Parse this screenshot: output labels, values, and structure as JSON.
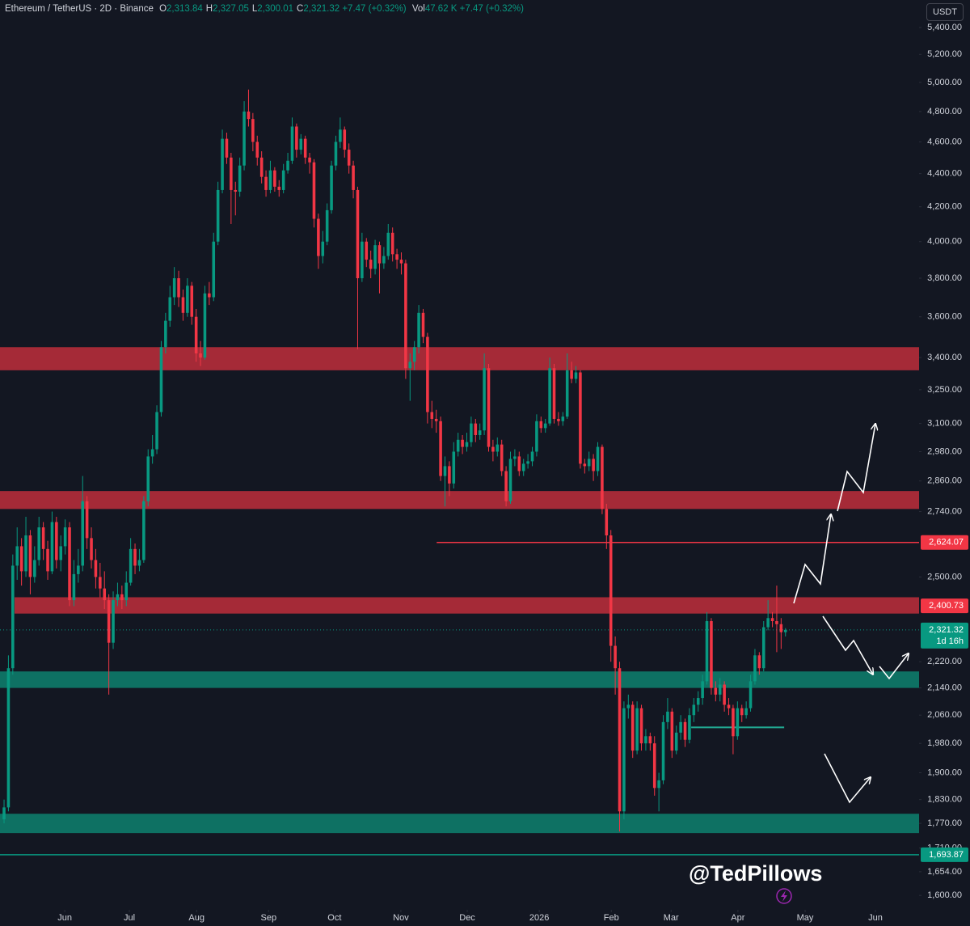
{
  "chart_data": {
    "type": "candlestick",
    "header": {
      "symbol": "Ethereum / TetherUS · 2D · Binance",
      "fields": [
        {
          "label": "O",
          "value": "2,313.84"
        },
        {
          "label": "H",
          "value": "2,327.05"
        },
        {
          "label": "L",
          "value": "2,300.01"
        },
        {
          "label": "C",
          "value": "2,321.32"
        }
      ],
      "change": "+7.47 (+0.32%)",
      "volume_label": "Vol",
      "volume": "47.62 K",
      "volume_change": "+7.47 (+0.32%)"
    },
    "currency": "USDT",
    "watermark": "@TedPillows",
    "up_color": "#089981",
    "down_color": "#f23645",
    "log_scale": true,
    "xlim": [
      -0.93,
      209.6
    ],
    "xticks": [
      {
        "value": 13.9,
        "label": "Jun"
      },
      {
        "value": 28.7,
        "label": "Jul"
      },
      {
        "value": 44.1,
        "label": "Aug"
      },
      {
        "value": 60.6,
        "label": "Sep"
      },
      {
        "value": 75.7,
        "label": "Oct"
      },
      {
        "value": 90.9,
        "label": "Nov"
      },
      {
        "value": 106.1,
        "label": "Dec"
      },
      {
        "value": 122.6,
        "label": "2026"
      },
      {
        "value": 139.1,
        "label": "Feb"
      },
      {
        "value": 152.8,
        "label": "Mar"
      },
      {
        "value": 168.1,
        "label": "Apr"
      },
      {
        "value": 183.5,
        "label": "May"
      },
      {
        "value": 199.6,
        "label": "Jun"
      }
    ],
    "ylim": [
      1568,
      5612
    ],
    "yticks": [
      {
        "value": 5400,
        "label": "5,400.00"
      },
      {
        "value": 5200,
        "label": "5,200.00"
      },
      {
        "value": 5000,
        "label": "5,000.00"
      },
      {
        "value": 4800,
        "label": "4,800.00"
      },
      {
        "value": 4600,
        "label": "4,600.00"
      },
      {
        "value": 4400,
        "label": "4,400.00"
      },
      {
        "value": 4200,
        "label": "4,200.00"
      },
      {
        "value": 4000,
        "label": "4,000.00"
      },
      {
        "value": 3800,
        "label": "3,800.00"
      },
      {
        "value": 3600,
        "label": "3,600.00"
      },
      {
        "value": 3400,
        "label": "3,400.00"
      },
      {
        "value": 3250,
        "label": "3,250.00"
      },
      {
        "value": 3100,
        "label": "3,100.00"
      },
      {
        "value": 2980,
        "label": "2,980.00"
      },
      {
        "value": 2860,
        "label": "2,860.00"
      },
      {
        "value": 2740,
        "label": "2,740.00"
      },
      {
        "value": 2500,
        "label": "2,500.00"
      },
      {
        "value": 2220,
        "label": "2,220.00"
      },
      {
        "value": 2140,
        "label": "2,140.00"
      },
      {
        "value": 2060,
        "label": "2,060.00"
      },
      {
        "value": 1980,
        "label": "1,980.00"
      },
      {
        "value": 1900,
        "label": "1,900.00"
      },
      {
        "value": 1830,
        "label": "1,830.00"
      },
      {
        "value": 1770,
        "label": "1,770.00"
      },
      {
        "value": 1710,
        "label": "1,710.00"
      },
      {
        "value": 1654,
        "label": "1,654.00"
      },
      {
        "value": 1600,
        "label": "1,600.00"
      }
    ],
    "zones": [
      {
        "low": 3340,
        "high": 3450,
        "color": "#b22d3a",
        "from": -0.93
      },
      {
        "low": 2750,
        "high": 2820,
        "color": "#b22d3a",
        "from": -0.93
      },
      {
        "low": 2375,
        "high": 2430,
        "color": "#b22d3a",
        "from": 2.4
      },
      {
        "low": 2140,
        "high": 2190,
        "color": "#0e7a69",
        "from": -0.93
      },
      {
        "low": 1746,
        "high": 1794,
        "color": "#0e7a69",
        "from": -0.93
      }
    ],
    "lines": [
      {
        "value": 2025,
        "color": "#22ab94",
        "from": 157.4,
        "to": 178.7
      }
    ],
    "price_lines": [
      {
        "value": 2624.07,
        "label": "2,624.07",
        "color": "#f23645",
        "line": "solid",
        "from": 99.1
      },
      {
        "value": 2400.73,
        "label": "2,400.73",
        "color": "#f23645"
      },
      {
        "value": 2321.32,
        "label": "2,321.32",
        "color": "#089981",
        "countdown": "1d 16h",
        "line": "dotted",
        "from": -0.93
      },
      {
        "value": 1693.87,
        "label": "1,693.87",
        "color": "#089981",
        "line": "solid",
        "from": -0.93
      }
    ],
    "ohlc": [
      [
        1780,
        1830,
        1770,
        1810
      ],
      [
        1810,
        2240,
        1800,
        2200
      ],
      [
        2200,
        2580,
        2180,
        2540
      ],
      [
        2540,
        2680,
        2490,
        2610
      ],
      [
        2610,
        2640,
        2470,
        2520
      ],
      [
        2520,
        2720,
        2500,
        2650
      ],
      [
        2650,
        2670,
        2440,
        2500
      ],
      [
        2500,
        2610,
        2480,
        2560
      ],
      [
        2560,
        2720,
        2540,
        2680
      ],
      [
        2680,
        2700,
        2560,
        2600
      ],
      [
        2600,
        2630,
        2490,
        2520
      ],
      [
        2520,
        2740,
        2510,
        2700
      ],
      [
        2700,
        2720,
        2530,
        2560
      ],
      [
        2560,
        2650,
        2520,
        2610
      ],
      [
        2610,
        2710,
        2580,
        2680
      ],
      [
        2680,
        2700,
        2400,
        2420
      ],
      [
        2420,
        2560,
        2400,
        2510
      ],
      [
        2510,
        2600,
        2480,
        2540
      ],
      [
        2540,
        2880,
        2520,
        2780
      ],
      [
        2780,
        2800,
        2600,
        2640
      ],
      [
        2640,
        2680,
        2530,
        2560
      ],
      [
        2560,
        2600,
        2460,
        2500
      ],
      [
        2500,
        2550,
        2430,
        2460
      ],
      [
        2460,
        2520,
        2390,
        2420
      ],
      [
        2420,
        2440,
        2120,
        2280
      ],
      [
        2280,
        2450,
        2260,
        2420
      ],
      [
        2420,
        2480,
        2400,
        2440
      ],
      [
        2440,
        2470,
        2390,
        2420
      ],
      [
        2420,
        2520,
        2400,
        2480
      ],
      [
        2480,
        2640,
        2470,
        2600
      ],
      [
        2600,
        2620,
        2510,
        2540
      ],
      [
        2540,
        2600,
        2520,
        2560
      ],
      [
        2560,
        2800,
        2550,
        2780
      ],
      [
        2780,
        2990,
        2760,
        2960
      ],
      [
        2960,
        3050,
        2930,
        2990
      ],
      [
        2990,
        3180,
        2970,
        3150
      ],
      [
        3150,
        3480,
        3130,
        3450
      ],
      [
        3450,
        3620,
        3420,
        3580
      ],
      [
        3580,
        3760,
        3550,
        3700
      ],
      [
        3700,
        3860,
        3660,
        3800
      ],
      [
        3800,
        3840,
        3650,
        3700
      ],
      [
        3700,
        3740,
        3580,
        3620
      ],
      [
        3620,
        3800,
        3600,
        3760
      ],
      [
        3760,
        3780,
        3560,
        3600
      ],
      [
        3600,
        3640,
        3380,
        3420
      ],
      [
        3420,
        3480,
        3360,
        3400
      ],
      [
        3400,
        3760,
        3390,
        3720
      ],
      [
        3720,
        3780,
        3660,
        3700
      ],
      [
        3700,
        4050,
        3680,
        4000
      ],
      [
        4000,
        4350,
        3980,
        4300
      ],
      [
        4300,
        4680,
        4280,
        4620
      ],
      [
        4620,
        4660,
        4460,
        4500
      ],
      [
        4500,
        4530,
        4100,
        4300
      ],
      [
        4300,
        4350,
        4150,
        4290
      ],
      [
        4290,
        4500,
        4260,
        4450
      ],
      [
        4450,
        4870,
        4420,
        4800
      ],
      [
        4800,
        4950,
        4700,
        4750
      ],
      [
        4750,
        4790,
        4540,
        4600
      ],
      [
        4600,
        4640,
        4450,
        4500
      ],
      [
        4500,
        4540,
        4340,
        4380
      ],
      [
        4380,
        4420,
        4260,
        4300
      ],
      [
        4300,
        4480,
        4280,
        4420
      ],
      [
        4420,
        4440,
        4290,
        4320
      ],
      [
        4320,
        4360,
        4260,
        4300
      ],
      [
        4300,
        4460,
        4280,
        4420
      ],
      [
        4420,
        4530,
        4400,
        4480
      ],
      [
        4480,
        4760,
        4460,
        4700
      ],
      [
        4700,
        4720,
        4500,
        4550
      ],
      [
        4550,
        4650,
        4520,
        4620
      ],
      [
        4620,
        4640,
        4460,
        4500
      ],
      [
        4500,
        4530,
        4400,
        4470
      ],
      [
        4470,
        4490,
        4080,
        4130
      ],
      [
        4130,
        4160,
        3850,
        3920
      ],
      [
        3920,
        4060,
        3880,
        4000
      ],
      [
        4000,
        4220,
        3980,
        4180
      ],
      [
        4180,
        4480,
        4160,
        4450
      ],
      [
        4450,
        4640,
        4420,
        4600
      ],
      [
        4600,
        4760,
        4560,
        4680
      ],
      [
        4680,
        4700,
        4500,
        4550
      ],
      [
        4550,
        4590,
        4400,
        4450
      ],
      [
        4450,
        4480,
        4250,
        4300
      ],
      [
        4300,
        4320,
        3440,
        3800
      ],
      [
        3800,
        4050,
        3780,
        4000
      ],
      [
        4000,
        4020,
        3860,
        3900
      ],
      [
        3900,
        3950,
        3800,
        3850
      ],
      [
        3850,
        4010,
        3820,
        3980
      ],
      [
        3980,
        4000,
        3720,
        3880
      ],
      [
        3880,
        3970,
        3850,
        3920
      ],
      [
        3920,
        4100,
        3900,
        4050
      ],
      [
        4050,
        4080,
        3890,
        3930
      ],
      [
        3930,
        3960,
        3850,
        3900
      ],
      [
        3900,
        3940,
        3820,
        3880
      ],
      [
        3880,
        3900,
        3300,
        3350
      ],
      [
        3350,
        3420,
        3200,
        3380
      ],
      [
        3380,
        3480,
        3340,
        3450
      ],
      [
        3450,
        3660,
        3420,
        3620
      ],
      [
        3620,
        3640,
        3470,
        3500
      ],
      [
        3500,
        3520,
        3100,
        3150
      ],
      [
        3150,
        3200,
        3080,
        3120
      ],
      [
        3120,
        3160,
        3060,
        3110
      ],
      [
        3110,
        3130,
        2860,
        2880
      ],
      [
        2880,
        2960,
        2760,
        2920
      ],
      [
        2920,
        2940,
        2800,
        2850
      ],
      [
        2850,
        3020,
        2830,
        2980
      ],
      [
        2980,
        3060,
        2960,
        3030
      ],
      [
        3030,
        3050,
        2970,
        3000
      ],
      [
        3000,
        3060,
        2980,
        3020
      ],
      [
        3020,
        3130,
        3000,
        3100
      ],
      [
        3100,
        3120,
        3020,
        3050
      ],
      [
        3050,
        3100,
        3030,
        3070
      ],
      [
        3070,
        3420,
        3050,
        3350
      ],
      [
        3350,
        3370,
        2980,
        3000
      ],
      [
        3000,
        3030,
        2940,
        2980
      ],
      [
        2980,
        3040,
        2960,
        3010
      ],
      [
        3010,
        3030,
        2880,
        2900
      ],
      [
        2900,
        2920,
        2760,
        2780
      ],
      [
        2780,
        2980,
        2770,
        2950
      ],
      [
        2950,
        2990,
        2920,
        2960
      ],
      [
        2960,
        2980,
        2880,
        2900
      ],
      [
        2900,
        2950,
        2880,
        2930
      ],
      [
        2930,
        2970,
        2910,
        2940
      ],
      [
        2940,
        3000,
        2920,
        2980
      ],
      [
        2980,
        3140,
        2960,
        3110
      ],
      [
        3110,
        3130,
        3060,
        3080
      ],
      [
        3080,
        3120,
        3060,
        3100
      ],
      [
        3100,
        3400,
        3090,
        3350
      ],
      [
        3350,
        3370,
        3100,
        3120
      ],
      [
        3120,
        3150,
        3090,
        3110
      ],
      [
        3110,
        3150,
        3090,
        3130
      ],
      [
        3130,
        3420,
        3120,
        3340
      ],
      [
        3340,
        3380,
        3280,
        3300
      ],
      [
        3300,
        3360,
        3280,
        3330
      ],
      [
        3330,
        3340,
        2910,
        2930
      ],
      [
        2930,
        2950,
        2890,
        2920
      ],
      [
        2920,
        2980,
        2900,
        2950
      ],
      [
        2950,
        2970,
        2860,
        2900
      ],
      [
        2900,
        3020,
        2880,
        3000
      ],
      [
        3000,
        3010,
        2730,
        2750
      ],
      [
        2750,
        2770,
        2600,
        2650
      ],
      [
        2650,
        2670,
        2220,
        2270
      ],
      [
        2270,
        2300,
        2120,
        2200
      ],
      [
        2200,
        2220,
        1750,
        1800
      ],
      [
        1800,
        2100,
        1780,
        2080
      ],
      [
        2080,
        2120,
        2050,
        2090
      ],
      [
        2090,
        2100,
        1940,
        1960
      ],
      [
        1960,
        2100,
        1950,
        2080
      ],
      [
        2080,
        2090,
        1960,
        1980
      ],
      [
        1980,
        2020,
        1960,
        2000
      ],
      [
        2000,
        2010,
        1960,
        1980
      ],
      [
        1980,
        2000,
        1840,
        1860
      ],
      [
        1860,
        1900,
        1800,
        1880
      ],
      [
        1880,
        2060,
        1870,
        2040
      ],
      [
        2040,
        2110,
        2020,
        2070
      ],
      [
        2070,
        2080,
        1940,
        1960
      ],
      [
        1960,
        2030,
        1950,
        2010
      ],
      [
        2010,
        2060,
        1990,
        2040
      ],
      [
        2040,
        2050,
        1970,
        1990
      ],
      [
        1990,
        2080,
        1980,
        2060
      ],
      [
        2060,
        2110,
        2040,
        2090
      ],
      [
        2090,
        2130,
        2070,
        2110
      ],
      [
        2110,
        2180,
        2090,
        2160
      ],
      [
        2160,
        2380,
        2150,
        2350
      ],
      [
        2350,
        2360,
        2120,
        2140
      ],
      [
        2140,
        2160,
        2100,
        2120
      ],
      [
        2120,
        2170,
        2100,
        2150
      ],
      [
        2150,
        2160,
        2070,
        2090
      ],
      [
        2090,
        2110,
        2060,
        2080
      ],
      [
        2080,
        2090,
        1950,
        2000
      ],
      [
        2000,
        2100,
        1990,
        2080
      ],
      [
        2080,
        2090,
        2040,
        2060
      ],
      [
        2060,
        2100,
        2050,
        2080
      ],
      [
        2080,
        2180,
        2070,
        2160
      ],
      [
        2160,
        2260,
        2150,
        2240
      ],
      [
        2240,
        2250,
        2180,
        2200
      ],
      [
        2200,
        2350,
        2190,
        2330
      ],
      [
        2330,
        2420,
        2320,
        2360
      ],
      [
        2360,
        2380,
        2330,
        2350
      ],
      [
        2350,
        2470,
        2250,
        2340
      ],
      [
        2340,
        2360,
        2260,
        2313.84
      ],
      [
        2313.84,
        2327.05,
        2300.01,
        2321.32
      ]
    ]
  }
}
